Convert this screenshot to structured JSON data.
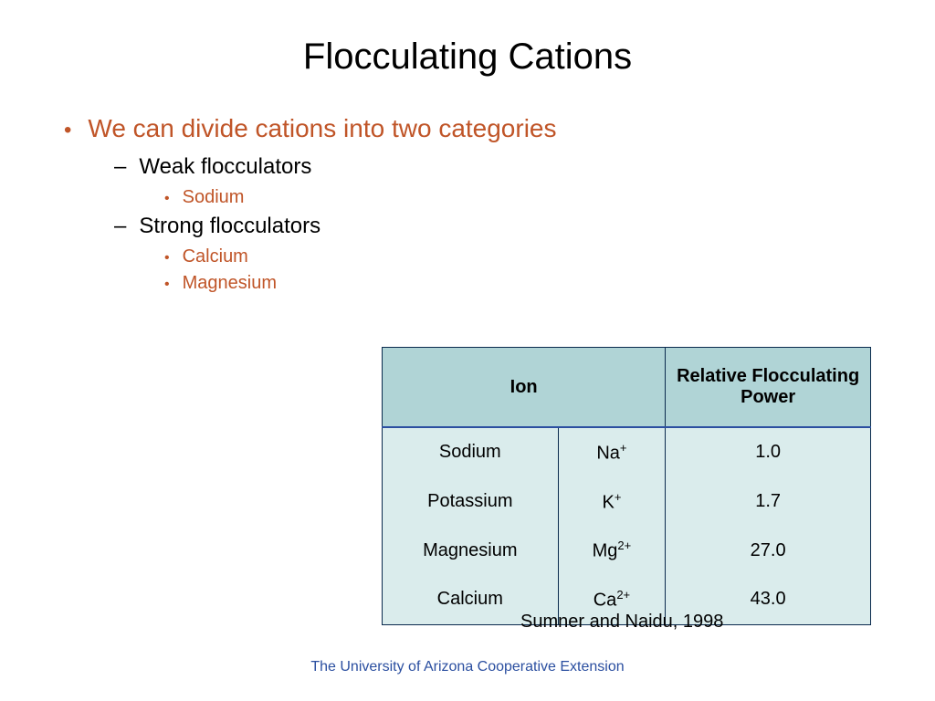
{
  "title": "Flocculating Cations",
  "bullets": {
    "l1": "We can divide cations into two categories",
    "l2a": "Weak flocculators",
    "l3a1": "Sodium",
    "l2b": "Strong flocculators",
    "l3b1": "Calcium",
    "l3b2": "Magnesium"
  },
  "table": {
    "headers": {
      "ion": "Ion",
      "power": "Relative Flocculating Power"
    },
    "rows": [
      {
        "name": "Sodium",
        "sym": "Na",
        "charge": "+",
        "power": "1.0"
      },
      {
        "name": "Potassium",
        "sym": "K",
        "charge": "+",
        "power": "1.7"
      },
      {
        "name": "Magnesium",
        "sym": "Mg",
        "charge": "2+",
        "power": "27.0"
      },
      {
        "name": "Calcium",
        "sym": "Ca",
        "charge": "2+",
        "power": "43.0"
      }
    ],
    "header_bg": "#b0d4d6",
    "body_bg": "#daecec",
    "border_color": "#0a2a4d",
    "header_rule_color": "#2b4fa0",
    "col_widths": [
      "36%",
      "22%",
      "42%"
    ]
  },
  "citation": "Sumner and Naidu, 1998",
  "footer": "The University of Arizona Cooperative Extension",
  "colors": {
    "accent": "#c05528",
    "footer": "#2b4fa0",
    "text": "#000000",
    "background": "#ffffff"
  },
  "fontsizes": {
    "title": 40,
    "l1": 28,
    "l2": 24,
    "l3": 20,
    "table": 20,
    "citation": 20,
    "footer": 16
  }
}
